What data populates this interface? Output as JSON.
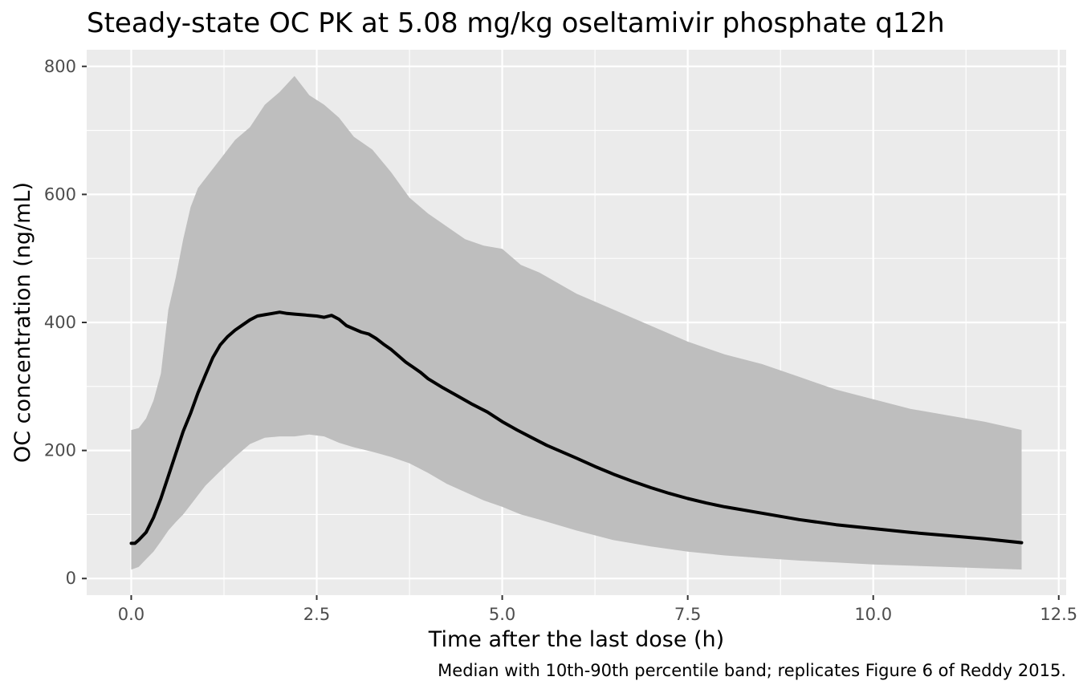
{
  "chart_data": {
    "type": "area",
    "title": "Steady-state OC PK at 5.08 mg/kg oseltamivir phosphate q12h",
    "xlabel": "Time after the last dose (h)",
    "ylabel": "OC concentration (ng/mL)",
    "caption": "Median with 10th-90th percentile band; replicates Figure 6 of Reddy 2015.",
    "xlim": [
      -0.6,
      12.6
    ],
    "ylim": [
      -26,
      826
    ],
    "x_ticks": [
      {
        "value": 0,
        "label": "0.0"
      },
      {
        "value": 2.5,
        "label": "2.5"
      },
      {
        "value": 5,
        "label": "5.0"
      },
      {
        "value": 7.5,
        "label": "7.5"
      },
      {
        "value": 10,
        "label": "10.0"
      },
      {
        "value": 12.5,
        "label": "12.5"
      }
    ],
    "y_ticks": [
      {
        "value": 0,
        "label": "0"
      },
      {
        "value": 200,
        "label": "200"
      },
      {
        "value": 400,
        "label": "400"
      },
      {
        "value": 600,
        "label": "600"
      },
      {
        "value": 800,
        "label": "800"
      }
    ],
    "grid": true,
    "colors": {
      "panel": "#EBEBEB",
      "grid": "#FFFFFF",
      "band": "#BEBEBE",
      "median": "#000000",
      "axis_text": "#4D4D4D",
      "text": "#000000"
    },
    "series": [
      {
        "kind": "band",
        "x": [
          0,
          0.1,
          0.2,
          0.3,
          0.4,
          0.5,
          0.6,
          0.7,
          0.8,
          0.9,
          1.0,
          1.2,
          1.4,
          1.6,
          1.8,
          2.0,
          2.2,
          2.4,
          2.6,
          2.8,
          3.0,
          3.25,
          3.5,
          3.75,
          4.0,
          4.25,
          4.5,
          4.75,
          5.0,
          5.25,
          5.5,
          6.0,
          6.5,
          7.0,
          7.5,
          8.0,
          8.5,
          9.0,
          9.5,
          10.0,
          10.5,
          11.0,
          11.5,
          12.0
        ],
        "upper": [
          232,
          235,
          250,
          278,
          320,
          420,
          470,
          530,
          580,
          610,
          625,
          655,
          685,
          705,
          740,
          760,
          785,
          755,
          740,
          720,
          690,
          670,
          635,
          595,
          570,
          550,
          530,
          520,
          515,
          490,
          478,
          445,
          420,
          395,
          370,
          350,
          335,
          315,
          295,
          280,
          265,
          255,
          245,
          232
        ],
        "lower": [
          14,
          18,
          30,
          42,
          58,
          75,
          88,
          100,
          115,
          130,
          145,
          168,
          190,
          210,
          220,
          222,
          222,
          225,
          222,
          212,
          205,
          198,
          190,
          180,
          165,
          148,
          135,
          122,
          112,
          100,
          92,
          75,
          60,
          50,
          42,
          36,
          32,
          28,
          25,
          22,
          20,
          18,
          16,
          14
        ]
      },
      {
        "kind": "median",
        "x": [
          0,
          0.05,
          0.1,
          0.2,
          0.3,
          0.4,
          0.5,
          0.6,
          0.7,
          0.8,
          0.9,
          1.0,
          1.1,
          1.2,
          1.3,
          1.4,
          1.5,
          1.6,
          1.7,
          1.8,
          1.9,
          2.0,
          2.1,
          2.2,
          2.3,
          2.4,
          2.5,
          2.6,
          2.7,
          2.8,
          2.9,
          3.0,
          3.1,
          3.2,
          3.3,
          3.4,
          3.5,
          3.6,
          3.7,
          3.8,
          3.9,
          4.0,
          4.2,
          4.4,
          4.6,
          4.8,
          5.0,
          5.2,
          5.4,
          5.6,
          5.8,
          6.0,
          6.25,
          6.5,
          6.75,
          7.0,
          7.25,
          7.5,
          7.75,
          8.0,
          8.5,
          9.0,
          9.5,
          10.0,
          10.5,
          11.0,
          11.5,
          12.0
        ],
        "values": [
          55,
          55,
          60,
          72,
          95,
          125,
          160,
          195,
          230,
          258,
          290,
          318,
          345,
          365,
          378,
          388,
          396,
          404,
          410,
          412,
          414,
          416,
          414,
          413,
          412,
          411,
          410,
          408,
          411,
          405,
          395,
          390,
          385,
          382,
          375,
          366,
          358,
          348,
          338,
          330,
          322,
          312,
          298,
          285,
          272,
          260,
          245,
          232,
          220,
          208,
          198,
          188,
          175,
          163,
          152,
          142,
          133,
          125,
          118,
          112,
          102,
          92,
          84,
          78,
          72,
          67,
          62,
          56
        ]
      }
    ]
  }
}
